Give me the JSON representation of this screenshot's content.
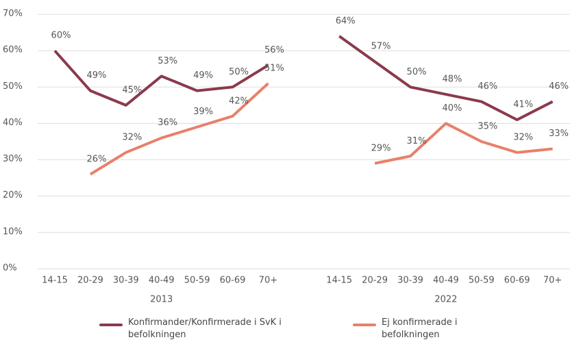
{
  "chart_data": {
    "type": "line",
    "categories": [
      "14-15",
      "20-29",
      "30-39",
      "40-49",
      "50-59",
      "60-69",
      "70+",
      null,
      "14-15",
      "20-29",
      "30-39",
      "40-49",
      "50-59",
      "60-69",
      "70+"
    ],
    "group_labels": [
      "2013",
      "2022"
    ],
    "series": [
      {
        "name": "Konfirmander/Konfirmerade i SvK i befolkningen",
        "color": "#8a3a4c",
        "values": [
          60,
          49,
          45,
          53,
          49,
          50,
          56,
          null,
          64,
          57,
          50,
          48,
          46,
          41,
          46
        ],
        "value_labels": [
          "60%",
          "49%",
          "45%",
          "53%",
          "49%",
          "50%",
          "56%",
          null,
          "64%",
          "57%",
          "50%",
          "48%",
          "46%",
          "41%",
          "46%"
        ]
      },
      {
        "name": "Ej konfirmerade i befolkningen",
        "color": "#e8806a",
        "values": [
          null,
          26,
          32,
          36,
          39,
          42,
          51,
          null,
          null,
          29,
          31,
          40,
          35,
          32,
          33
        ],
        "value_labels": [
          null,
          "26%",
          "32%",
          "36%",
          "39%",
          "42%",
          "51%",
          null,
          null,
          "29%",
          "31%",
          "40%",
          "35%",
          "32%",
          "33%"
        ]
      }
    ],
    "ylim": [
      0,
      70
    ],
    "yticks": [
      {
        "value": 0,
        "label": "0%"
      },
      {
        "value": 10,
        "label": "10%"
      },
      {
        "value": 20,
        "label": "20%"
      },
      {
        "value": 30,
        "label": "30%"
      },
      {
        "value": 40,
        "label": "40%"
      },
      {
        "value": 50,
        "label": "50%"
      },
      {
        "value": 60,
        "label": "60%"
      },
      {
        "value": 70,
        "label": "70%"
      }
    ],
    "grid": true
  }
}
